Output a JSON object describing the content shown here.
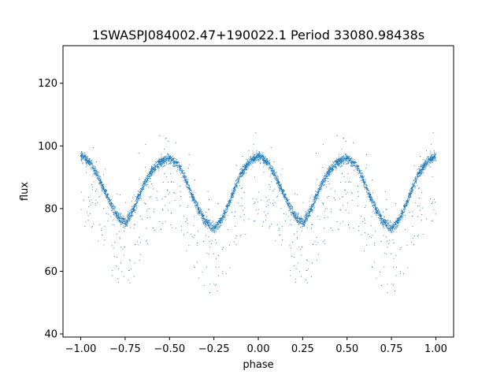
{
  "chart_data": {
    "type": "scatter",
    "title": "1SWASPJ084002.47+190022.1 Period 33080.98438s",
    "xlabel": "phase",
    "ylabel": "flux",
    "xlim": [
      -1.1,
      1.1
    ],
    "ylim": [
      39,
      132
    ],
    "xticks": [
      -1.0,
      -0.75,
      -0.5,
      -0.25,
      0.0,
      0.25,
      0.5,
      0.75,
      1.0
    ],
    "xtick_labels": [
      "−1.00",
      "−0.75",
      "−0.50",
      "−0.25",
      "0.00",
      "0.25",
      "0.50",
      "0.75",
      "1.00"
    ],
    "yticks": [
      40,
      60,
      80,
      100,
      120
    ],
    "ytick_labels": [
      "40",
      "60",
      "80",
      "100",
      "120"
    ],
    "grid": false,
    "point_color": "#1f77b4",
    "series": [
      {
        "x": [
          -1.0,
          -0.95,
          -0.9,
          -0.85,
          -0.8,
          -0.75,
          -0.7,
          -0.65,
          -0.6,
          -0.55,
          -0.5,
          -0.45,
          -0.4,
          -0.35,
          -0.3,
          -0.25,
          -0.2,
          -0.15,
          -0.1,
          -0.05,
          0.0,
          0.05,
          0.1,
          0.15,
          0.2,
          0.25,
          0.3,
          0.35,
          0.4,
          0.45,
          0.5,
          0.55,
          0.6,
          0.65,
          0.7,
          0.75,
          0.8,
          0.85,
          0.9,
          0.95,
          1.0
        ],
        "y": [
          97,
          95,
          90,
          84,
          78,
          75.5,
          80,
          87,
          92,
          95,
          96,
          94,
          88,
          81,
          76,
          73.5,
          77,
          84,
          91,
          95,
          97,
          95,
          90,
          84,
          78,
          75.5,
          80,
          87,
          92,
          95,
          96,
          94,
          88,
          81,
          76,
          73.5,
          77,
          84,
          91,
          95,
          97
        ]
      }
    ]
  }
}
